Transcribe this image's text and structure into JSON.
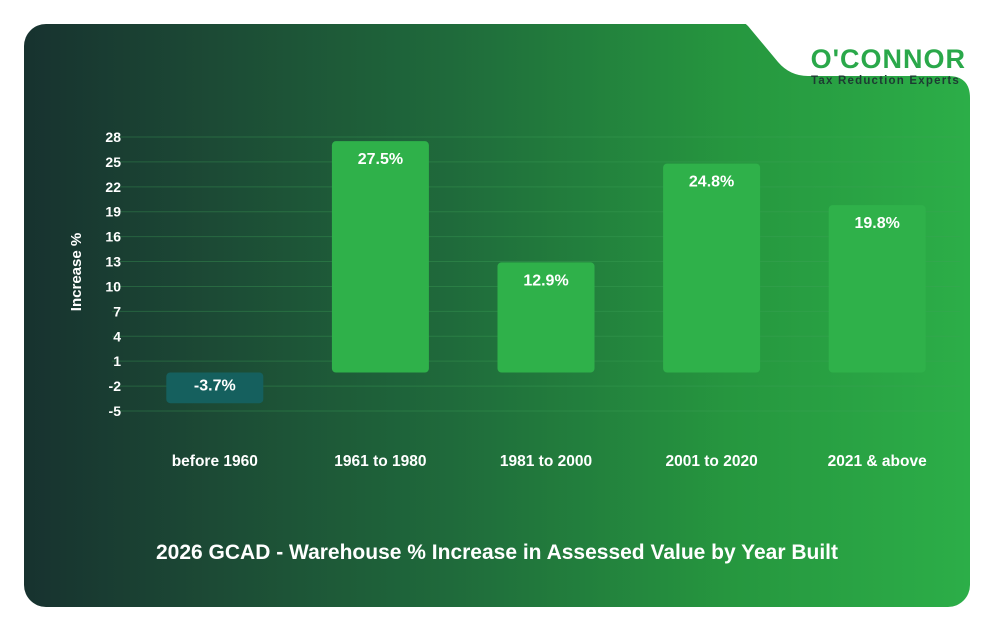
{
  "brand": {
    "name": "O'CONNOR",
    "tagline": "Tax Reduction Experts",
    "primary_color": "#2aa84a",
    "dark_color": "#1d3b32"
  },
  "chart_data": {
    "type": "bar",
    "title": "2026 GCAD - Warehouse % Increase in Assessed Value by Year Built",
    "xlabel": "",
    "ylabel": "Increase %",
    "categories": [
      "before 1960",
      "1961 to 1980",
      "1981 to 2000",
      "2001 to 2020",
      "2021 & above"
    ],
    "values": [
      -3.7,
      27.5,
      12.9,
      24.8,
      19.8
    ],
    "value_labels": [
      "-3.7%",
      "27.5%",
      "12.9%",
      "24.8%",
      "19.8%"
    ],
    "yticks": [
      28,
      25,
      22,
      19,
      16,
      13,
      10,
      7,
      4,
      1,
      -2,
      -5
    ],
    "ylim": [
      -5,
      28
    ],
    "grid": true,
    "legend": "none",
    "colors": {
      "positive": "#2fb14a",
      "negative": "#15605e",
      "grid": "#3fa45a",
      "text": "#ffffff"
    }
  }
}
